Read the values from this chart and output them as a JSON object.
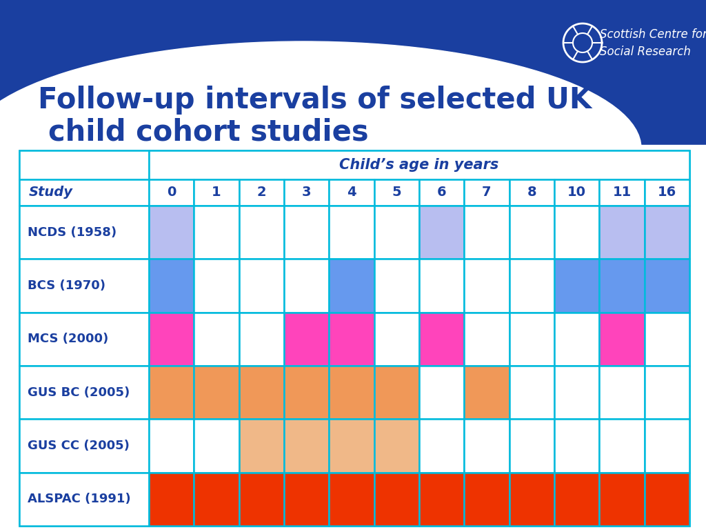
{
  "title_line1": "Follow-up intervals of selected UK",
  "title_line2": "child cohort studies",
  "title_color": "#1a3fa0",
  "bg_dark": "#1a3fa0",
  "bg_light": "#ffffff",
  "age_header": "Child’s age in years",
  "ages": [
    "0",
    "1",
    "2",
    "3",
    "4",
    "5",
    "6",
    "7",
    "8",
    "10",
    "11",
    "16"
  ],
  "studies": [
    "NCDS (1958)",
    "BCS (1970)",
    "MCS (2000)",
    "GUS BC (2005)",
    "GUS CC (2005)",
    "ALSPAC (1991)"
  ],
  "cell_data": {
    "NCDS (1958)": [
      1,
      0,
      0,
      0,
      0,
      0,
      1,
      0,
      0,
      0,
      1,
      1
    ],
    "BCS (1970)": [
      1,
      0,
      0,
      0,
      1,
      0,
      0,
      0,
      0,
      1,
      1,
      1
    ],
    "MCS (2000)": [
      1,
      0,
      0,
      1,
      1,
      0,
      1,
      0,
      0,
      0,
      1,
      0
    ],
    "GUS BC (2005)": [
      1,
      1,
      1,
      1,
      1,
      1,
      0,
      1,
      0,
      0,
      0,
      0
    ],
    "GUS CC (2005)": [
      0,
      0,
      1,
      1,
      1,
      1,
      0,
      0,
      0,
      0,
      0,
      0
    ],
    "ALSPAC (1991)": [
      1,
      1,
      1,
      1,
      1,
      1,
      1,
      1,
      1,
      1,
      1,
      1
    ]
  },
  "colors": {
    "NCDS (1958)": "#b8bef0",
    "BCS (1970)": "#6699ee",
    "MCS (2000)": "#ff44bb",
    "GUS BC (2005)": "#f09858",
    "GUS CC (2005)": "#f0b888",
    "ALSPAC (1991)": "#ee3300"
  },
  "grid_color": "#00bbdd",
  "text_color": "#1a3fa0",
  "fig_width": 10.24,
  "fig_height": 7.68,
  "dpi": 100
}
